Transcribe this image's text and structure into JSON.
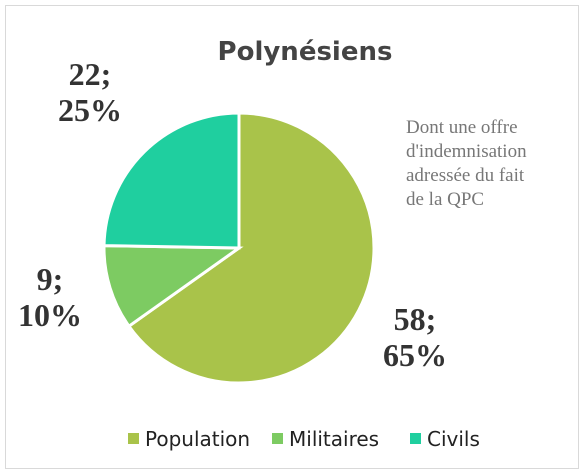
{
  "chart_data": {
    "type": "pie",
    "title": "Polynésiens",
    "categories": [
      "Population",
      "Militaires",
      "Civils"
    ],
    "values": [
      58,
      9,
      22
    ],
    "value_labels": [
      "58; 65%",
      "9; 10%",
      "22; 25%"
    ],
    "colors": [
      "#a9c34a",
      "#7dcb62",
      "#1fcf9f"
    ],
    "annotation": [
      "Dont une offre",
      "d'indemnisation",
      "adressée du fait",
      "de la QPC"
    ],
    "legend": "bottom"
  }
}
